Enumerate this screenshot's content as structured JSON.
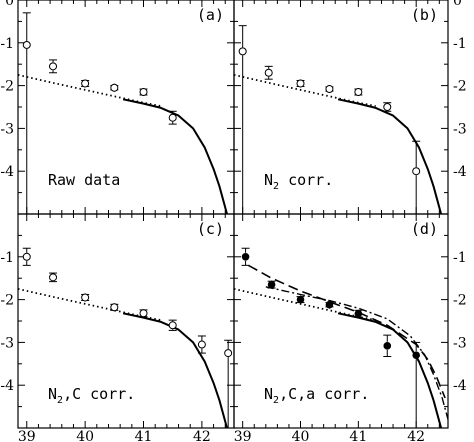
{
  "chart_data": [
    {
      "type": "scatter",
      "panel_label": "(a)",
      "annotation": {
        "main": "Raw data"
      },
      "xlim": [
        38.85,
        42.55
      ],
      "ylim": [
        -5,
        0
      ],
      "x_ticks": [],
      "y_ticks": [
        "0",
        "-1",
        "-2",
        "-3",
        "-4"
      ],
      "y_ticks_right": [],
      "points": [
        {
          "x": 39.0,
          "y": -1.05,
          "err_up": 0.75,
          "err_down": 3.95,
          "filled": false
        },
        {
          "x": 39.45,
          "y": -1.55,
          "err_up": 0.15,
          "err_down": 0.15,
          "filled": false
        },
        {
          "x": 40.0,
          "y": -1.95,
          "err_up": 0.07,
          "err_down": 0.07,
          "filled": false
        },
        {
          "x": 40.5,
          "y": -2.05,
          "err_up": 0.05,
          "err_down": 0.05,
          "filled": false
        },
        {
          "x": 41.0,
          "y": -2.15,
          "err_up": 0.07,
          "err_down": 0.07,
          "filled": false
        },
        {
          "x": 41.5,
          "y": -2.75,
          "err_up": 0.15,
          "err_down": 0.15,
          "filled": false
        }
      ],
      "curves": [
        "dotted_model",
        "solid_model"
      ]
    },
    {
      "type": "scatter",
      "panel_label": "(b)",
      "annotation": {
        "main": "N",
        "sub": "2",
        "rest": " corr."
      },
      "xlim": [
        38.85,
        42.55
      ],
      "ylim": [
        -5,
        0
      ],
      "x_ticks": [],
      "y_ticks": [],
      "y_ticks_right": [
        "-1",
        "-2",
        "-3",
        "-4",
        "0"
      ],
      "points": [
        {
          "x": 39.0,
          "y": -1.2,
          "err_up": 0.6,
          "err_down": 3.8,
          "filled": false
        },
        {
          "x": 39.45,
          "y": -1.7,
          "err_up": 0.15,
          "err_down": 0.15,
          "filled": false
        },
        {
          "x": 40.0,
          "y": -1.95,
          "err_up": 0.07,
          "err_down": 0.07,
          "filled": false
        },
        {
          "x": 40.5,
          "y": -2.08,
          "err_up": 0.05,
          "err_down": 0.05,
          "filled": false
        },
        {
          "x": 41.0,
          "y": -2.15,
          "err_up": 0.07,
          "err_down": 0.07,
          "filled": false
        },
        {
          "x": 41.5,
          "y": -2.5,
          "err_up": 0.1,
          "err_down": 0.1,
          "filled": false
        },
        {
          "x": 42.0,
          "y": -4.0,
          "err_up": 0.7,
          "err_down": 1.0,
          "filled": false
        }
      ],
      "curves": [
        "dotted_model",
        "solid_model"
      ]
    },
    {
      "type": "scatter",
      "panel_label": "(c)",
      "annotation": {
        "main": "N",
        "sub": "2",
        "rest": ",C corr."
      },
      "xlim": [
        38.85,
        42.55
      ],
      "ylim": [
        -5,
        0
      ],
      "x_ticks": [
        "39",
        "40",
        "41",
        "42"
      ],
      "y_ticks": [
        "-1",
        "-2",
        "-3",
        "-4"
      ],
      "y_ticks_right": [],
      "points": [
        {
          "x": 39.0,
          "y": -1.0,
          "err_up": 0.2,
          "err_down": 0.2,
          "filled": false
        },
        {
          "x": 39.45,
          "y": -1.48,
          "err_up": 0.1,
          "err_down": 0.1,
          "filled": false
        },
        {
          "x": 40.0,
          "y": -1.95,
          "err_up": 0.07,
          "err_down": 0.07,
          "filled": false
        },
        {
          "x": 40.5,
          "y": -2.18,
          "err_up": 0.07,
          "err_down": 0.07,
          "filled": false
        },
        {
          "x": 41.0,
          "y": -2.32,
          "err_up": 0.08,
          "err_down": 0.08,
          "filled": false
        },
        {
          "x": 41.5,
          "y": -2.6,
          "err_up": 0.12,
          "err_down": 0.12,
          "filled": false
        },
        {
          "x": 42.0,
          "y": -3.05,
          "err_up": 0.2,
          "err_down": 0.2,
          "filled": false
        },
        {
          "x": 42.45,
          "y": -3.25,
          "err_up": 0.3,
          "err_down": 1.75,
          "filled": false
        }
      ],
      "curves": [
        "dotted_model",
        "solid_model"
      ]
    },
    {
      "type": "scatter",
      "panel_label": "(d)",
      "annotation": {
        "main": "N",
        "sub": "2",
        "rest": ",C,a corr."
      },
      "xlim": [
        38.85,
        42.55
      ],
      "ylim": [
        -5,
        0
      ],
      "x_ticks": [
        "39",
        "40",
        "41",
        "42"
      ],
      "y_ticks": [],
      "y_ticks_right": [
        "-1",
        "-2",
        "-3",
        "-4"
      ],
      "points": [
        {
          "x": 39.05,
          "y": -1.0,
          "err_up": 0.2,
          "err_down": 0.2,
          "filled": true
        },
        {
          "x": 39.5,
          "y": -1.65,
          "err_up": 0.08,
          "err_down": 0.08,
          "filled": true
        },
        {
          "x": 40.0,
          "y": -2.0,
          "err_up": 0.07,
          "err_down": 0.07,
          "filled": true
        },
        {
          "x": 40.5,
          "y": -2.12,
          "err_up": 0.05,
          "err_down": 0.05,
          "filled": true
        },
        {
          "x": 41.0,
          "y": -2.33,
          "err_up": 0.08,
          "err_down": 0.08,
          "filled": true
        },
        {
          "x": 41.5,
          "y": -3.08,
          "err_up": 0.25,
          "err_down": 0.25,
          "filled": true
        },
        {
          "x": 42.0,
          "y": -3.3,
          "err_up": 0.3,
          "err_down": 1.7,
          "filled": true
        }
      ],
      "curves": [
        "dotted_model",
        "solid_model",
        "dashed_fit",
        "dashdot_fit"
      ]
    }
  ],
  "curves": {
    "dotted_model": {
      "style": "dotted",
      "x": [
        38.85,
        39.5,
        40.0,
        40.5,
        41.0,
        41.3
      ],
      "y": [
        -1.75,
        -1.95,
        -2.1,
        -2.25,
        -2.4,
        -2.48
      ]
    },
    "solid_model": {
      "style": "solid",
      "x": [
        40.65,
        41.0,
        41.3,
        41.6,
        41.85,
        42.05,
        42.2,
        42.3,
        42.37,
        42.43
      ],
      "y": [
        -2.32,
        -2.42,
        -2.52,
        -2.7,
        -3.0,
        -3.45,
        -3.95,
        -4.35,
        -4.7,
        -5.0
      ]
    },
    "dashed_fit": {
      "style": "dashed",
      "x": [
        39.1,
        39.5,
        40.0,
        40.5,
        41.0,
        41.5,
        42.0,
        42.2,
        42.35,
        42.5
      ],
      "y": [
        -1.2,
        -1.5,
        -1.8,
        -2.05,
        -2.3,
        -2.6,
        -3.05,
        -3.4,
        -3.8,
        -4.3
      ]
    },
    "dashdot_fit": {
      "style": "dashdot",
      "x": [
        39.4,
        40.0,
        40.5,
        41.0,
        41.5,
        41.9,
        42.15,
        42.3,
        42.45,
        42.55
      ],
      "y": [
        -1.7,
        -1.88,
        -2.02,
        -2.2,
        -2.45,
        -2.85,
        -3.3,
        -3.75,
        -4.3,
        -4.8
      ]
    }
  }
}
